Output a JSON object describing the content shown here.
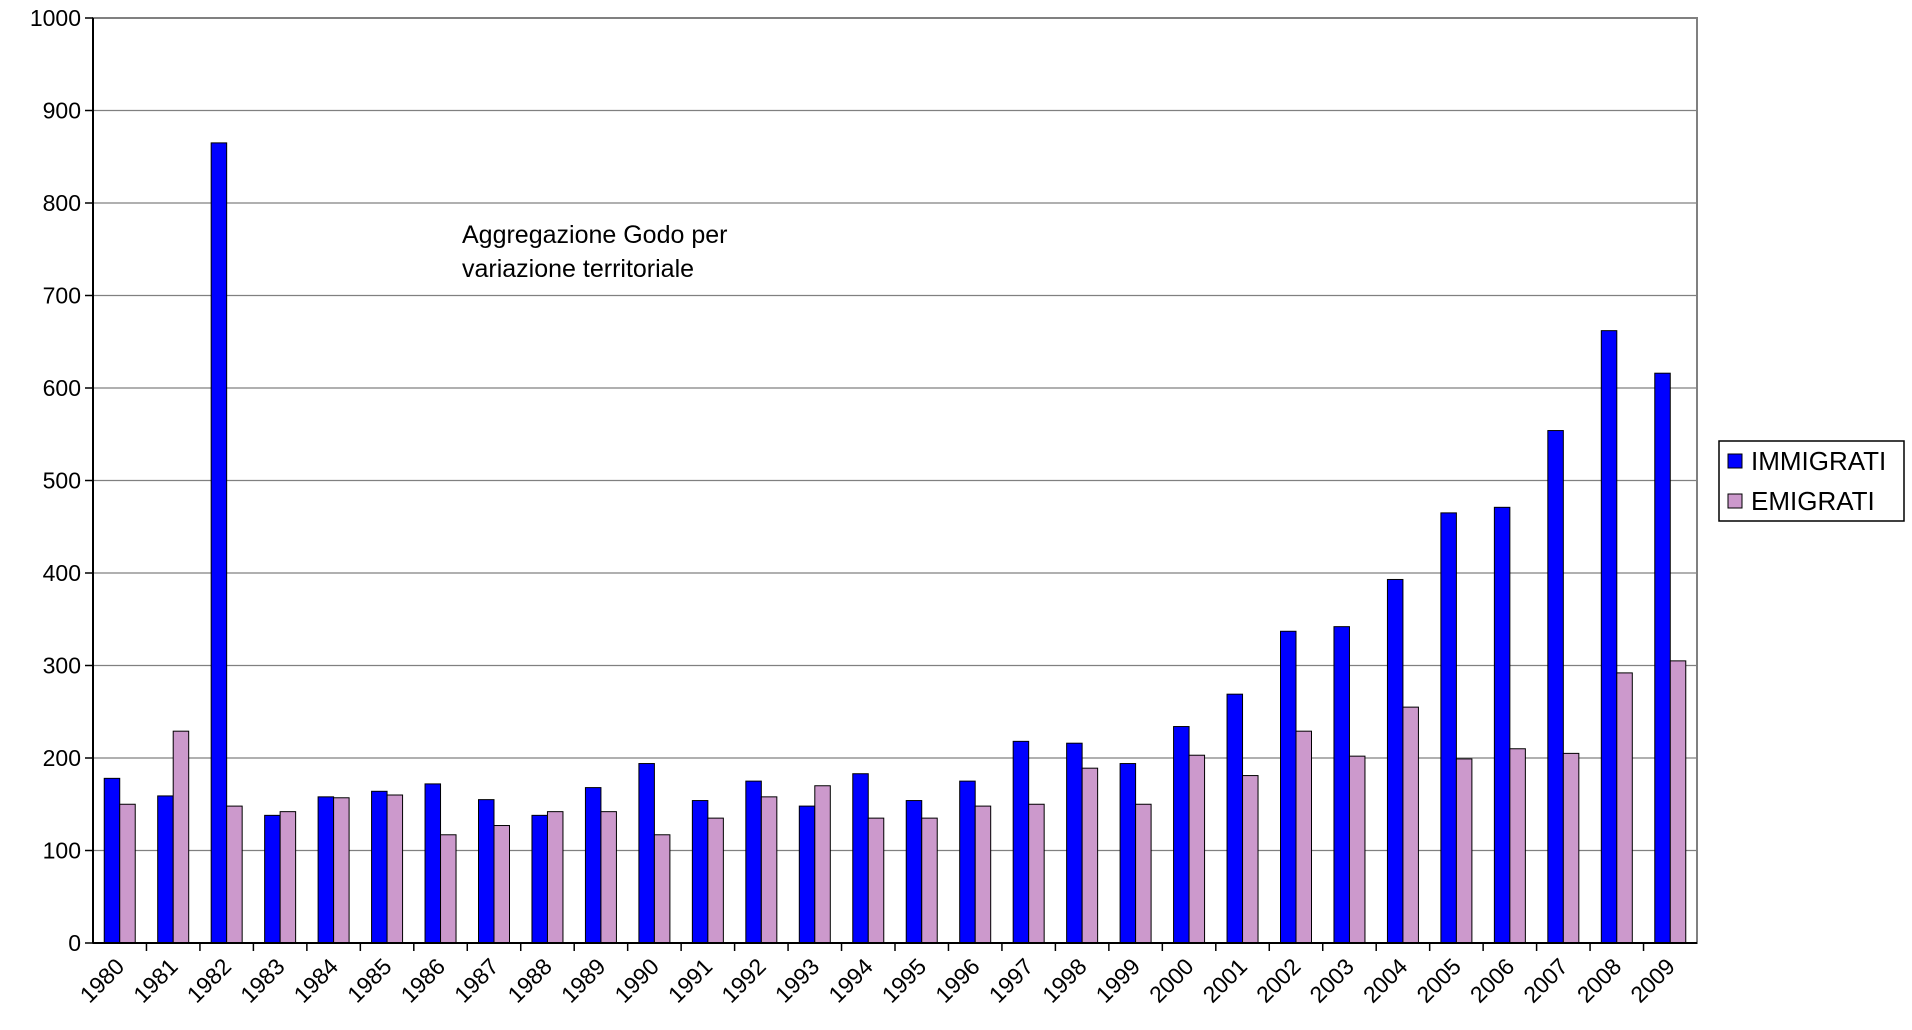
{
  "chart_data": {
    "type": "bar",
    "categories": [
      "1980",
      "1981",
      "1982",
      "1983",
      "1984",
      "1985",
      "1986",
      "1987",
      "1988",
      "1989",
      "1990",
      "1991",
      "1992",
      "1993",
      "1994",
      "1995",
      "1996",
      "1997",
      "1998",
      "1999",
      "2000",
      "2001",
      "2002",
      "2003",
      "2004",
      "2005",
      "2006",
      "2007",
      "2008",
      "2009"
    ],
    "series": [
      {
        "name": "IMMIGRATI",
        "color": "#0000ff",
        "values": [
          178,
          159,
          865,
          138,
          158,
          164,
          172,
          155,
          138,
          168,
          194,
          154,
          175,
          148,
          183,
          154,
          175,
          218,
          216,
          194,
          234,
          269,
          337,
          342,
          393,
          465,
          471,
          554,
          662,
          616
        ]
      },
      {
        "name": "EMIGRATI",
        "color": "#cc99cc",
        "values": [
          150,
          229,
          148,
          142,
          157,
          160,
          117,
          127,
          142,
          142,
          117,
          135,
          158,
          170,
          135,
          135,
          148,
          150,
          189,
          150,
          203,
          181,
          229,
          202,
          255,
          199,
          210,
          205,
          292,
          305
        ]
      }
    ],
    "ylim": [
      0,
      1000
    ],
    "yticks": [
      "0",
      "100",
      "200",
      "300",
      "400",
      "500",
      "600",
      "700",
      "800",
      "900",
      "1000"
    ],
    "grid": true,
    "legend_position": "right",
    "annotation_lines": [
      "Aggregazione Godo per",
      "variazione territoriale"
    ],
    "title": "",
    "xlabel": "",
    "ylabel": ""
  }
}
